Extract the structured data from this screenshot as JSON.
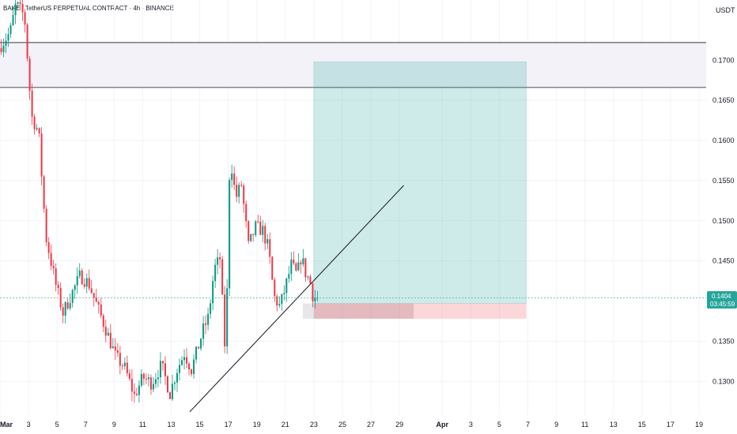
{
  "header": {
    "symbol": "BAKE / TetherUS PERPETUAL CONTRACT · 4h · BINANCE",
    "currency": "USDT"
  },
  "price_tag": {
    "price": "0.1404",
    "countdown": "03:45:59"
  },
  "chart_data": {
    "type": "candlestick",
    "title": "BAKE / TetherUS PERPETUAL CONTRACT · 4h · BINANCE",
    "ylabel": "USDT",
    "ylim": [
      0.1258,
      0.1775
    ],
    "xlim_days": [
      1,
      50.5
    ],
    "y_ticks": [
      "0.1700",
      "0.1650",
      "0.1600",
      "0.1550",
      "0.1500",
      "0.1450",
      "0.1350",
      "0.1300"
    ],
    "y_tick_values": [
      0.17,
      0.165,
      0.16,
      0.155,
      0.15,
      0.145,
      0.135,
      0.13
    ],
    "x_ticks": [
      {
        "label": "Mar",
        "day": 1
      },
      {
        "label": "3",
        "day": 3
      },
      {
        "label": "5",
        "day": 5
      },
      {
        "label": "7",
        "day": 7
      },
      {
        "label": "9",
        "day": 9
      },
      {
        "label": "11",
        "day": 11
      },
      {
        "label": "13",
        "day": 13
      },
      {
        "label": "15",
        "day": 15
      },
      {
        "label": "17",
        "day": 17
      },
      {
        "label": "19",
        "day": 19
      },
      {
        "label": "21",
        "day": 21
      },
      {
        "label": "23",
        "day": 23
      },
      {
        "label": "25",
        "day": 25
      },
      {
        "label": "27",
        "day": 27
      },
      {
        "label": "29",
        "day": 29
      },
      {
        "label": "Apr",
        "day": 32
      },
      {
        "label": "3",
        "day": 34
      },
      {
        "label": "5",
        "day": 36
      },
      {
        "label": "7",
        "day": 38
      },
      {
        "label": "9",
        "day": 40
      },
      {
        "label": "11",
        "day": 42
      },
      {
        "label": "13",
        "day": 44
      },
      {
        "label": "15",
        "day": 46
      },
      {
        "label": "17",
        "day": 48
      },
      {
        "label": "19",
        "day": 50
      }
    ],
    "candle_path_days": [
      1,
      1.8,
      2.2,
      2.8,
      3.3,
      3.8,
      4.3,
      5.0,
      5.5,
      6.0,
      6.7,
      7.3,
      7.8,
      8.5,
      9.2,
      9.8,
      10.5,
      11.1,
      11.7,
      12.4,
      13.0,
      13.5,
      14.0,
      14.5,
      14.9,
      15.3,
      15.7,
      16.1,
      16.5,
      16.9,
      17.2,
      17.6,
      18.0,
      18.5,
      19.0,
      19.5,
      19.9,
      20.3,
      20.7,
      21.1,
      21.5,
      21.9,
      22.2,
      22.5,
      22.8,
      23.0,
      23.2
    ],
    "candle_path_prices": [
      0.1715,
      0.1735,
      0.177,
      0.1755,
      0.163,
      0.161,
      0.148,
      0.142,
      0.1385,
      0.1405,
      0.1432,
      0.1422,
      0.1398,
      0.1365,
      0.133,
      0.1318,
      0.1282,
      0.1305,
      0.1298,
      0.132,
      0.1285,
      0.1315,
      0.1335,
      0.1315,
      0.1338,
      0.1363,
      0.138,
      0.144,
      0.1453,
      0.1325,
      0.1585,
      0.1528,
      0.1545,
      0.1468,
      0.1492,
      0.1488,
      0.1465,
      0.1405,
      0.1393,
      0.1418,
      0.1445,
      0.1432,
      0.1456,
      0.1435,
      0.1425,
      0.1408,
      0.1404
    ],
    "supply_zone": {
      "top": 0.1722,
      "bottom": 0.1666
    },
    "trendline": {
      "start": [
        14.3,
        0.1262
      ],
      "end": [
        29.3,
        0.1544
      ]
    },
    "long_position": {
      "start_day": 23.0,
      "end_day": 37.9,
      "entry": 0.1397,
      "target": 0.1698,
      "stop": 0.1378
    },
    "current_price": 0.1404
  }
}
